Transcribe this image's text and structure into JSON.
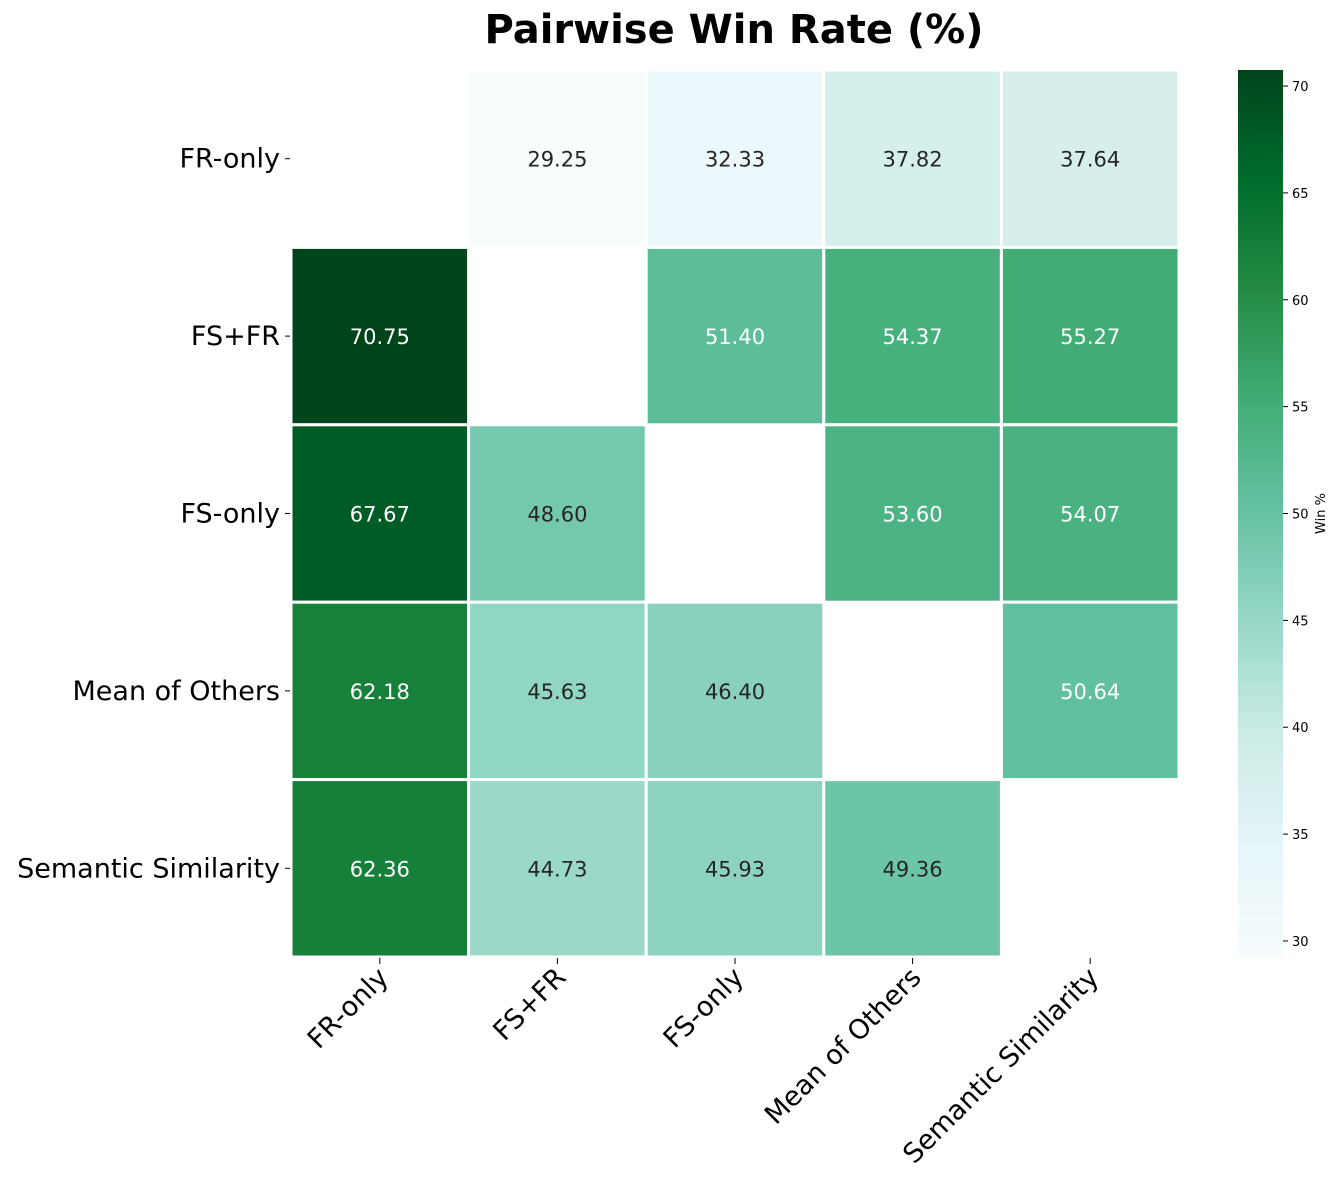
{
  "chart_data": {
    "type": "heatmap",
    "title": "Pairwise Win Rate (%)",
    "rows": [
      "FR-only",
      "FS+FR",
      "FS-only",
      "Mean of Others",
      "Semantic Similarity"
    ],
    "columns": [
      "FR-only",
      "FS+FR",
      "FS-only",
      "Mean of Others",
      "Semantic Similarity"
    ],
    "values": [
      [
        null,
        29.25,
        32.33,
        37.82,
        37.64
      ],
      [
        70.75,
        null,
        51.4,
        54.37,
        55.27
      ],
      [
        67.67,
        48.6,
        null,
        53.6,
        54.07
      ],
      [
        62.18,
        45.63,
        46.4,
        null,
        50.64
      ],
      [
        62.36,
        44.73,
        45.93,
        49.36,
        null
      ]
    ],
    "value_format": "2 decimals",
    "colorbar": {
      "label": "Win %",
      "min": 29.25,
      "max": 70.75,
      "ticks": [
        30,
        35,
        40,
        45,
        50,
        55,
        60,
        65,
        70
      ],
      "colormap": "BuGn",
      "colors": [
        "#f7fcfd",
        "#e5f5f9",
        "#ccece6",
        "#99d8c9",
        "#66c2a4",
        "#41ae76",
        "#238b45",
        "#006d2c",
        "#00441b"
      ]
    },
    "diagonal": "masked"
  }
}
